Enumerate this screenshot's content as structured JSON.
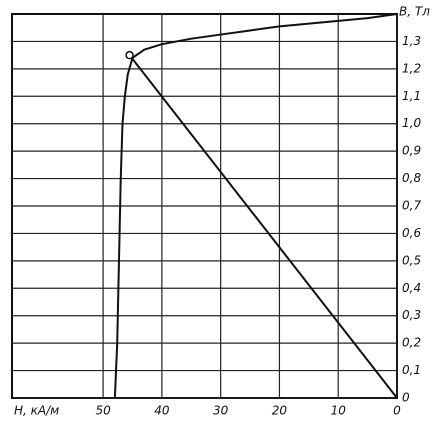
{
  "chart_data": {
    "type": "line",
    "x_label": "H, кА/м",
    "y_label": "B, Тл",
    "x_reversed": true,
    "xlim": [
      0,
      65.5
    ],
    "ylim": [
      0,
      1.4
    ],
    "xticks": [
      0,
      10,
      20,
      30,
      40,
      50
    ],
    "yticks": [
      0,
      {
        "value": 0.1,
        "label": "0,1"
      },
      {
        "value": 0.2,
        "label": "0,2"
      },
      {
        "value": 0.3,
        "label": "0,3"
      },
      {
        "value": 0.4,
        "label": "0,4"
      },
      {
        "value": 0.5,
        "label": "0,5"
      },
      {
        "value": 0.6,
        "label": "0,6"
      },
      {
        "value": 0.7,
        "label": "0,7"
      },
      {
        "value": 0.8,
        "label": "0,8"
      },
      {
        "value": 0.9,
        "label": "0,9"
      },
      {
        "value": 1.0,
        "label": "1,0"
      },
      {
        "value": 1.1,
        "label": "1,1"
      },
      {
        "value": 1.2,
        "label": "1,2"
      },
      {
        "value": 1.3,
        "label": "1,3"
      }
    ],
    "grid": true,
    "series": [
      {
        "color": "#111111",
        "x": [
          48,
          47.6,
          47.3,
          47,
          46.7,
          46.3,
          45.8,
          45,
          43,
          40,
          35,
          30,
          25,
          20,
          15,
          10,
          5,
          0
        ],
        "values": [
          0,
          0.2,
          0.5,
          0.8,
          1.0,
          1.1,
          1.18,
          1.24,
          1.27,
          1.29,
          1.31,
          1.325,
          1.34,
          1.355,
          1.365,
          1.375,
          1.385,
          1.4
        ]
      },
      {
        "color": "#111111",
        "x": [
          0,
          45.5
        ],
        "values": [
          0,
          1.25
        ]
      }
    ],
    "operating_point": {
      "x": 45.5,
      "y": 1.25
    }
  }
}
